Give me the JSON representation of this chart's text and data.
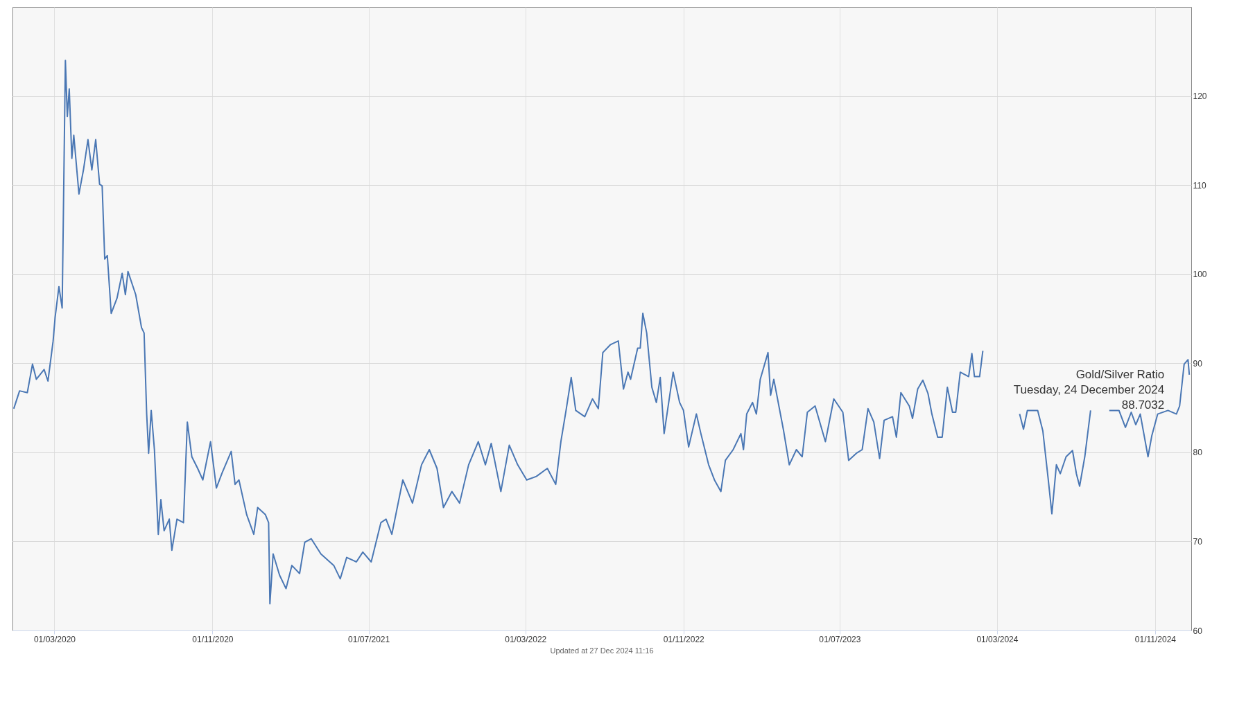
{
  "chart_data": {
    "type": "line",
    "x": [
      "2019-12-29",
      "2020-01-07",
      "2020-01-19",
      "2020-01-27",
      "2020-02-02",
      "2020-02-14",
      "2020-02-20",
      "2020-02-28",
      "2020-03-02",
      "2020-03-08",
      "2020-03-13",
      "2020-03-18",
      "2020-03-21",
      "2020-03-24",
      "2020-03-28",
      "2020-03-31",
      "2020-04-08",
      "2020-04-15",
      "2020-04-22",
      "2020-04-28",
      "2020-05-04",
      "2020-05-10",
      "2020-05-14",
      "2020-05-18",
      "2020-05-22",
      "2020-05-28",
      "2020-06-06",
      "2020-06-14",
      "2020-06-19",
      "2020-06-23",
      "2020-07-05",
      "2020-07-14",
      "2020-07-18",
      "2020-07-22",
      "2020-07-25",
      "2020-07-29",
      "2020-08-03",
      "2020-08-09",
      "2020-08-13",
      "2020-08-18",
      "2020-08-26",
      "2020-08-30",
      "2020-09-07",
      "2020-09-17",
      "2020-09-23",
      "2020-09-30",
      "2020-10-09",
      "2020-10-17",
      "2020-10-29",
      "2020-11-07",
      "2020-11-16",
      "2020-11-30",
      "2020-12-06",
      "2020-12-12",
      "2020-12-24",
      "2021-01-04",
      "2021-01-10",
      "2021-01-22",
      "2021-01-27",
      "2021-01-29",
      "2021-02-03",
      "2021-02-13",
      "2021-02-23",
      "2021-03-04",
      "2021-03-16",
      "2021-03-24",
      "2021-04-03",
      "2021-04-18",
      "2021-05-08",
      "2021-05-18",
      "2021-05-28",
      "2021-06-12",
      "2021-06-22",
      "2021-07-05",
      "2021-07-20",
      "2021-07-28",
      "2021-08-06",
      "2021-08-23",
      "2021-09-07",
      "2021-09-21",
      "2021-10-03",
      "2021-10-15",
      "2021-10-25",
      "2021-11-07",
      "2021-11-19",
      "2021-12-03",
      "2021-12-18",
      "2021-12-29",
      "2022-01-07",
      "2022-01-22",
      "2022-02-04",
      "2022-02-17",
      "2022-03-03",
      "2022-03-18",
      "2022-04-04",
      "2022-04-17",
      "2022-04-25",
      "2022-05-03",
      "2022-05-11",
      "2022-05-18",
      "2022-06-01",
      "2022-06-13",
      "2022-06-22",
      "2022-06-29",
      "2022-07-11",
      "2022-07-23",
      "2022-07-31",
      "2022-08-07",
      "2022-08-11",
      "2022-08-22",
      "2022-08-26",
      "2022-08-30",
      "2022-09-05",
      "2022-09-13",
      "2022-09-20",
      "2022-09-26",
      "2022-10-02",
      "2022-10-16",
      "2022-10-26",
      "2022-11-01",
      "2022-11-09",
      "2022-11-21",
      "2022-11-28",
      "2022-12-10",
      "2022-12-19",
      "2022-12-29",
      "2023-01-05",
      "2023-01-17",
      "2023-01-29",
      "2023-02-02",
      "2023-02-07",
      "2023-02-16",
      "2023-02-22",
      "2023-02-28",
      "2023-03-12",
      "2023-03-16",
      "2023-03-21",
      "2023-04-05",
      "2023-04-14",
      "2023-04-25",
      "2023-05-04",
      "2023-05-12",
      "2023-05-24",
      "2023-06-09",
      "2023-06-22",
      "2023-07-06",
      "2023-07-15",
      "2023-07-27",
      "2023-08-05",
      "2023-08-14",
      "2023-08-23",
      "2023-09-01",
      "2023-09-08",
      "2023-09-21",
      "2023-09-27",
      "2023-10-04",
      "2023-10-17",
      "2023-10-22",
      "2023-10-30",
      "2023-11-07",
      "2023-11-15",
      "2023-11-21",
      "2023-11-30",
      "2023-12-07",
      "2023-12-15",
      "2023-12-23",
      "2023-12-28",
      "2024-01-04",
      "2024-01-17",
      "2024-01-22",
      "2024-01-26",
      "2024-02-03",
      "2024-02-08",
      "2024-03-05",
      "2024-04-05",
      "2024-04-11",
      "2024-04-17",
      "2024-05-03",
      "2024-05-11",
      "2024-05-19",
      "2024-05-25",
      "2024-06-01",
      "2024-06-07",
      "2024-06-16",
      "2024-06-26",
      "2024-07-02",
      "2024-07-07",
      "2024-07-15",
      "2024-07-24",
      "2024-08-05",
      "2024-08-22",
      "2024-09-06",
      "2024-09-16",
      "2024-09-25",
      "2024-10-02",
      "2024-10-09",
      "2024-10-21",
      "2024-10-27",
      "2024-11-05",
      "2024-11-21",
      "2024-12-04",
      "2024-12-09",
      "2024-12-16",
      "2024-12-22",
      "2024-12-24"
    ],
    "series": [
      {
        "color": "#4a77b4",
        "values": [
          84.9,
          86.9,
          86.7,
          89.9,
          88.2,
          89.3,
          88.0,
          92.5,
          95.1,
          98.6,
          96.2,
          124.0,
          117.7,
          120.8,
          113.0,
          115.6,
          109.0,
          111.7,
          115.1,
          111.7,
          115.1,
          110.1,
          109.9,
          101.7,
          102.1,
          95.6,
          97.3,
          100.1,
          97.7,
          100.3,
          97.7,
          94.0,
          93.4,
          84.3,
          79.9,
          84.7,
          80.3,
          70.8,
          74.7,
          71.2,
          72.5,
          69.0,
          72.5,
          72.1,
          83.4,
          79.5,
          78.2,
          76.9,
          81.2,
          76.0,
          77.7,
          80.1,
          76.4,
          76.9,
          73.0,
          70.8,
          73.8,
          73.0,
          72.1,
          63.0,
          68.6,
          66.2,
          64.7,
          67.3,
          66.4,
          69.9,
          70.3,
          68.6,
          67.3,
          65.8,
          68.2,
          67.7,
          68.8,
          67.7,
          72.1,
          72.5,
          70.8,
          76.9,
          74.3,
          78.6,
          80.3,
          78.2,
          73.8,
          75.6,
          74.3,
          78.6,
          81.2,
          78.6,
          81.0,
          75.6,
          80.8,
          78.6,
          76.9,
          77.3,
          78.2,
          76.4,
          81.2,
          84.7,
          88.4,
          84.7,
          84.0,
          86.0,
          84.9,
          91.2,
          92.1,
          92.5,
          87.1,
          89.0,
          88.2,
          91.7,
          91.7,
          95.6,
          93.4,
          87.3,
          85.6,
          88.4,
          82.1,
          89.0,
          85.6,
          84.7,
          80.6,
          84.3,
          82.1,
          78.6,
          76.9,
          75.6,
          79.1,
          80.3,
          82.1,
          80.3,
          84.3,
          85.6,
          84.3,
          88.2,
          91.2,
          86.4,
          88.2,
          82.5,
          78.6,
          80.3,
          79.5,
          84.5,
          85.2,
          81.2,
          86.0,
          84.5,
          79.1,
          79.9,
          80.3,
          84.9,
          83.4,
          79.3,
          83.6,
          84.0,
          81.7,
          86.7,
          85.2,
          83.8,
          87.1,
          88.1,
          86.6,
          84.3,
          81.7,
          81.7,
          87.3,
          84.5,
          84.5,
          89.0,
          88.5,
          91.1,
          88.5,
          88.5,
          91.4,
          null,
          84.3,
          82.6,
          84.7,
          84.7,
          82.4,
          77.2,
          73.1,
          78.6,
          77.6,
          79.5,
          80.2,
          77.6,
          76.2,
          79.5,
          84.7,
          null,
          84.7,
          84.7,
          82.8,
          84.5,
          83.1,
          84.3,
          79.5,
          81.9,
          84.3,
          84.7,
          84.3,
          85.2,
          89.9,
          90.4,
          88.7032
        ]
      }
    ],
    "xlim": [
      "2019-12-27",
      "2024-12-27"
    ],
    "xticks": [
      {
        "value": "2020-03-01",
        "label": "01/03/2020"
      },
      {
        "value": "2020-11-01",
        "label": "01/11/2020"
      },
      {
        "value": "2021-07-01",
        "label": "01/07/2021"
      },
      {
        "value": "2022-03-01",
        "label": "01/03/2022"
      },
      {
        "value": "2022-11-01",
        "label": "01/11/2022"
      },
      {
        "value": "2023-07-01",
        "label": "01/07/2023"
      },
      {
        "value": "2024-03-01",
        "label": "01/03/2024"
      },
      {
        "value": "2024-11-01",
        "label": "01/11/2024"
      }
    ],
    "ylim": [
      60,
      130
    ],
    "yticks": [
      60,
      70,
      80,
      90,
      100,
      110,
      120
    ],
    "grid": true,
    "annotations": [
      {
        "text": "Gold/Silver Ratio\nTuesday, 24 December 2024\n88.7032",
        "x": "2024-12-24",
        "y": 88.7032
      },
      "Updated at 27 Dec 2024 11:16"
    ]
  }
}
